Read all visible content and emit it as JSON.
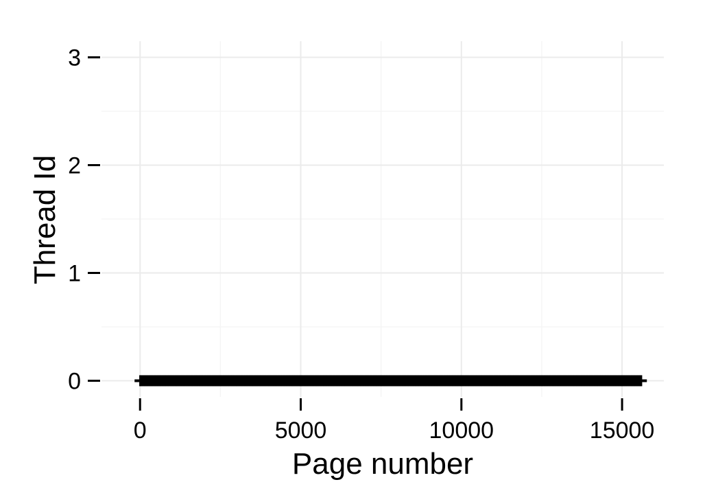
{
  "chart_data": {
    "type": "scatter",
    "title": "",
    "xlabel": "Page number",
    "ylabel": "Thread Id",
    "xlim": [
      -1200,
      16300
    ],
    "ylim": [
      -0.15,
      3.15
    ],
    "x_ticks": [
      0,
      5000,
      10000,
      15000
    ],
    "x_tick_labels": [
      "0",
      "5000",
      "10000",
      "15000"
    ],
    "y_ticks": [
      0,
      1,
      2,
      3
    ],
    "y_tick_labels": [
      "0",
      "1",
      "2",
      "3"
    ],
    "grid": true,
    "legend": "none",
    "series": [
      {
        "thread_id": 0,
        "x_range": [
          0,
          15600
        ],
        "marker_color": "#000000"
      }
    ]
  },
  "colors": {
    "background": "#ffffff",
    "grid_major": "#ebebeb",
    "grid_minor": "#f5f5f5",
    "points": "#000000"
  }
}
